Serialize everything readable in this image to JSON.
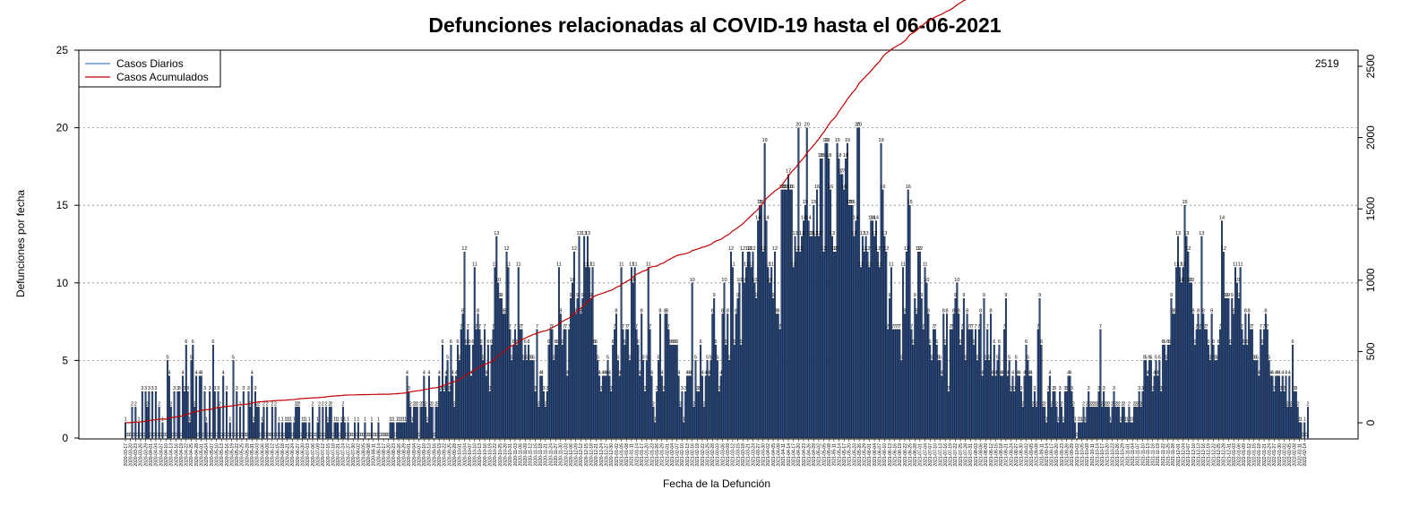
{
  "chart_data": {
    "type": "bar+line",
    "title": "Defunciones relacionadas al COVID-19 hasta el 06-06-2021",
    "xlabel": "Fecha de la Defunción",
    "ylabel": "Defunciones por fecha",
    "start_date": "2020-03-17",
    "end_date": "2021-06-04",
    "xtick_step_days": 3,
    "ylim_left": [
      0,
      25
    ],
    "yticks_left": [
      0,
      5,
      10,
      15,
      20,
      25
    ],
    "ylim_right": [
      0,
      2500
    ],
    "yticks_right": [
      0,
      500,
      1000,
      1500,
      2000,
      2500
    ],
    "grid": "horizontal dotted",
    "legend_position": "top-left",
    "legend": [
      {
        "label": "Casos Diarios",
        "color": "#4a7fc1"
      },
      {
        "label": "Casos Acumulados",
        "color": "#c00000"
      }
    ],
    "bar_color": "#2a4f8f",
    "line_color": "#c00000",
    "final_cumulative": 2519,
    "final_cumulative_label": "2519",
    "daily_deaths": [
      1,
      0,
      0,
      0,
      2,
      0,
      2,
      0,
      1,
      0,
      3,
      0,
      3,
      2,
      3,
      0,
      3,
      0,
      3,
      0,
      2,
      0,
      1,
      0,
      0,
      5,
      4,
      2,
      0,
      3,
      0,
      3,
      3,
      0,
      4,
      3,
      6,
      3,
      1,
      5,
      6,
      2,
      4,
      0,
      4,
      4,
      0,
      3,
      1,
      0,
      3,
      0,
      6,
      3,
      0,
      3,
      2,
      0,
      4,
      0,
      3,
      0,
      1,
      0,
      5,
      0,
      3,
      0,
      2,
      0,
      3,
      0,
      0,
      3,
      2,
      4,
      1,
      3,
      2,
      2,
      0,
      1,
      2,
      0,
      2,
      0,
      0,
      2,
      0,
      2,
      0,
      1,
      0,
      1,
      0,
      1,
      1,
      1,
      1,
      0,
      1,
      2,
      2,
      2,
      0,
      1,
      1,
      1,
      0,
      1,
      0,
      2,
      0,
      0,
      1,
      2,
      0,
      2,
      0,
      2,
      1,
      2,
      2,
      0,
      1,
      1,
      1,
      0,
      1,
      2,
      1,
      0,
      1,
      0,
      0,
      0,
      1,
      0,
      1,
      0,
      0,
      0,
      1,
      0,
      0,
      0,
      1,
      0,
      0,
      0,
      1,
      0,
      0,
      0,
      0,
      0,
      0,
      1,
      1,
      1,
      0,
      1,
      1,
      1,
      1,
      1,
      1,
      4,
      3,
      2,
      1,
      2,
      2,
      2,
      0,
      2,
      2,
      4,
      2,
      1,
      4,
      2,
      2,
      0,
      2,
      2,
      4,
      3,
      6,
      3,
      4,
      5,
      3,
      6,
      4,
      2,
      4,
      6,
      5,
      7,
      8,
      12,
      6,
      7,
      6,
      4,
      6,
      11,
      7,
      8,
      7,
      6,
      5,
      7,
      4,
      6,
      3,
      6,
      7,
      11,
      13,
      10,
      9,
      9,
      8,
      8,
      12,
      11,
      7,
      5,
      6,
      7,
      6,
      11,
      7,
      7,
      5,
      6,
      5,
      6,
      5,
      5,
      5,
      3,
      7,
      2,
      4,
      4,
      3,
      2,
      3,
      6,
      7,
      7,
      5,
      6,
      6,
      11,
      8,
      6,
      7,
      7,
      4,
      7,
      9,
      10,
      12,
      8,
      9,
      13,
      8,
      9,
      13,
      11,
      13,
      11,
      9,
      11,
      6,
      6,
      5,
      4,
      3,
      4,
      4,
      4,
      5,
      4,
      3,
      6,
      7,
      8,
      5,
      4,
      11,
      7,
      6,
      7,
      7,
      5,
      11,
      10,
      11,
      7,
      6,
      4,
      8,
      5,
      3,
      5,
      11,
      7,
      4,
      2,
      1,
      3,
      5,
      8,
      4,
      3,
      8,
      8,
      7,
      6,
      6,
      6,
      6,
      6,
      4,
      2,
      3,
      1,
      3,
      4,
      4,
      4,
      10,
      2,
      5,
      3,
      3,
      6,
      4,
      2,
      4,
      5,
      4,
      5,
      8,
      9,
      6,
      5,
      3,
      4,
      8,
      10,
      6,
      8,
      5,
      12,
      11,
      6,
      8,
      9,
      10,
      6,
      12,
      10,
      11,
      12,
      12,
      11,
      12,
      10,
      9,
      14,
      15,
      15,
      12,
      19,
      14,
      11,
      10,
      11,
      9,
      12,
      8,
      8,
      7,
      16,
      16,
      16,
      16,
      17,
      16,
      16,
      11,
      13,
      12,
      20,
      12,
      13,
      14,
      15,
      20,
      14,
      13,
      13,
      15,
      13,
      16,
      13,
      18,
      18,
      12,
      19,
      19,
      18,
      16,
      13,
      12,
      12,
      19,
      18,
      17,
      17,
      16,
      18,
      19,
      15,
      15,
      15,
      13,
      14,
      20,
      20,
      11,
      13,
      12,
      13,
      12,
      11,
      14,
      14,
      13,
      14,
      12,
      11,
      19,
      16,
      13,
      12,
      7,
      9,
      11,
      7,
      7,
      7,
      7,
      7,
      5,
      11,
      8,
      12,
      16,
      15,
      7,
      6,
      9,
      8,
      12,
      12,
      9,
      7,
      11,
      10,
      8,
      6,
      5,
      7,
      7,
      6,
      5,
      5,
      4,
      8,
      6,
      8,
      3,
      7,
      7,
      8,
      9,
      10,
      8,
      6,
      7,
      9,
      5,
      8,
      7,
      7,
      7,
      6,
      7,
      5,
      7,
      8,
      4,
      9,
      5,
      7,
      5,
      8,
      4,
      6,
      4,
      5,
      6,
      4,
      4,
      7,
      9,
      4,
      5,
      3,
      4,
      3,
      5,
      4,
      4,
      3,
      2,
      4,
      6,
      5,
      4,
      4,
      2,
      3,
      2,
      7,
      9,
      6,
      2,
      2,
      1,
      3,
      4,
      2,
      3,
      3,
      2,
      1,
      3,
      2,
      1,
      3,
      3,
      4,
      4,
      3,
      2,
      1,
      0,
      1,
      1,
      1,
      2,
      1,
      2,
      3,
      2,
      2,
      2,
      2,
      2,
      3,
      7,
      2,
      3,
      2,
      2,
      2,
      1,
      2,
      3,
      2,
      2,
      2,
      1,
      2,
      2,
      1,
      1,
      2,
      1,
      1,
      2,
      2,
      2,
      3,
      2,
      3,
      5,
      5,
      4,
      5,
      5,
      3,
      4,
      5,
      4,
      5,
      3,
      6,
      6,
      5,
      6,
      6,
      9,
      8,
      8,
      11,
      13,
      11,
      10,
      11,
      15,
      13,
      12,
      10,
      10,
      8,
      6,
      7,
      8,
      7,
      13,
      8,
      7,
      7,
      6,
      5,
      8,
      6,
      5,
      5,
      6,
      7,
      14,
      12,
      9,
      9,
      9,
      6,
      9,
      8,
      11,
      10,
      9,
      11,
      7,
      6,
      8,
      6,
      8,
      7,
      7,
      5,
      5,
      5,
      4,
      7,
      6,
      7,
      8,
      7,
      5,
      4,
      4,
      3,
      4,
      4,
      4,
      3,
      4,
      3,
      4,
      2,
      4,
      2,
      6,
      3,
      3,
      2,
      1,
      1,
      0,
      1,
      0,
      2
    ]
  }
}
